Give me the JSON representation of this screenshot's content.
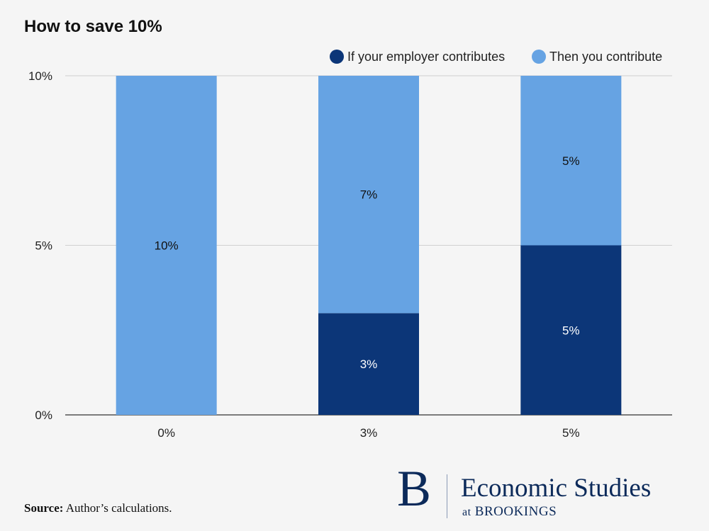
{
  "chart_data": {
    "type": "bar",
    "stacked": true,
    "title": "How to save 10%",
    "categories": [
      "0%",
      "3%",
      "5%"
    ],
    "series": [
      {
        "name": "If your employer contributes",
        "color": "#0c3678",
        "label_color": "#ffffff",
        "values": [
          0,
          3,
          5
        ]
      },
      {
        "name": "Then you contribute",
        "color": "#66a3e3",
        "label_color": "#111111",
        "values": [
          10,
          7,
          5
        ]
      }
    ],
    "yticks": [
      "0%",
      "5%",
      "10%"
    ],
    "ytick_values": [
      0,
      5,
      10
    ],
    "ylim": [
      0,
      10
    ],
    "grid": true,
    "legend": "top-right",
    "xlabel": "",
    "ylabel": ""
  },
  "footer": {
    "source_label": "Source:",
    "source_text": "Author’s calculations."
  },
  "logo": {
    "mark": "B",
    "name": "Economic Studies",
    "at": "at",
    "org": "BROOKINGS"
  }
}
